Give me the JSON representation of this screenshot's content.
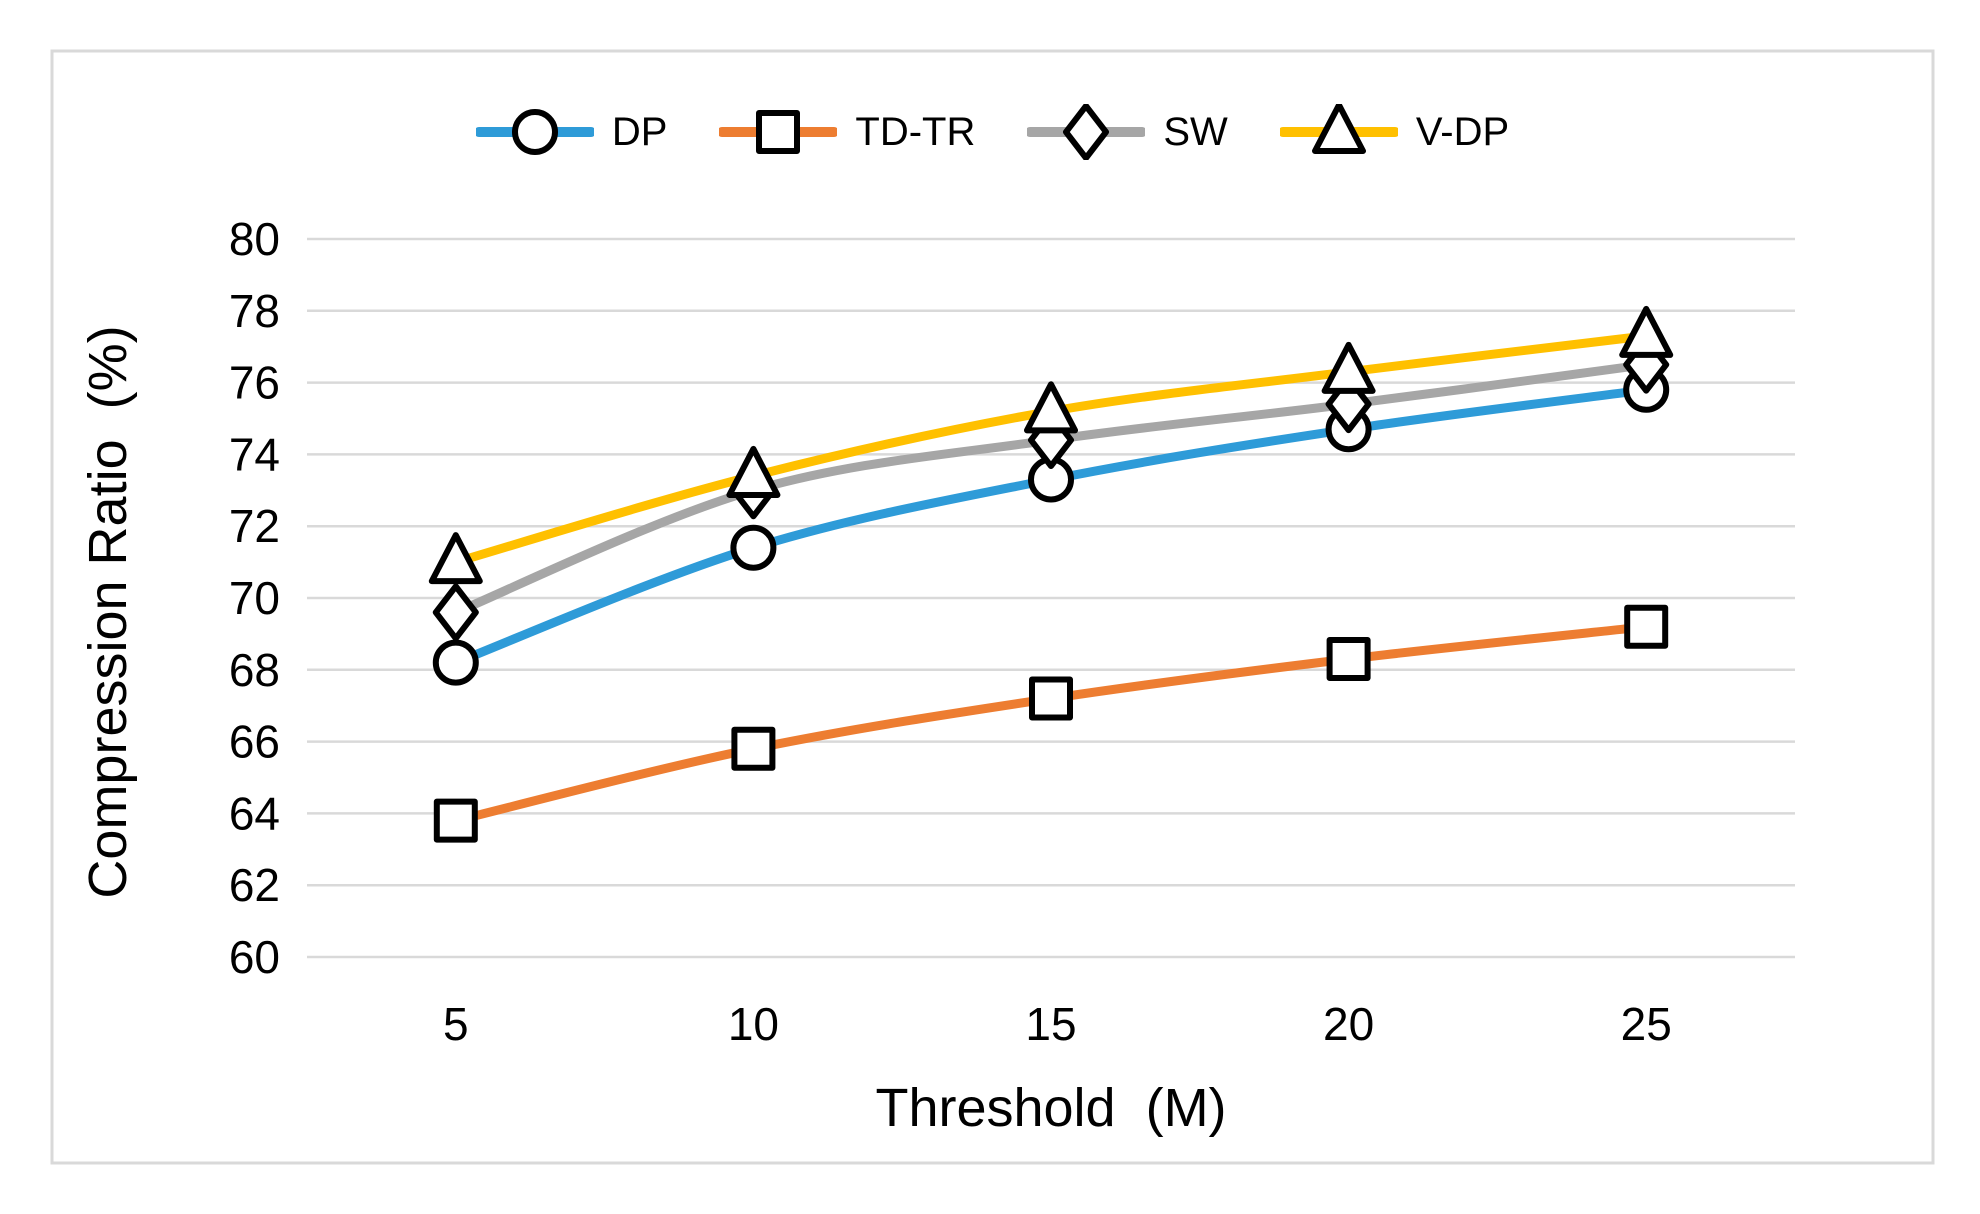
{
  "figure": {
    "background": "#ffffff",
    "border_color": "#D9D9D9"
  },
  "chart_data": {
    "type": "line",
    "title": "",
    "xlabel": "Threshold  (M)",
    "ylabel": "Compression Ratio  (%)",
    "x": [
      5,
      10,
      15,
      20,
      25
    ],
    "x_tick_labels": [
      "5",
      "10",
      "15",
      "20",
      "25"
    ],
    "ylim": [
      60,
      80
    ],
    "ytick_step": 2,
    "y_tick_labels": [
      "60",
      "62",
      "64",
      "66",
      "68",
      "70",
      "72",
      "74",
      "76",
      "78",
      "80"
    ],
    "grid": true,
    "legend_position": "top-center",
    "grid_color": "#D9D9D9",
    "text_color": "#000000",
    "marker_stroke": "#000000",
    "marker_fill": "#ffffff",
    "series": [
      {
        "name": "DP",
        "color": "#2E9BD8",
        "marker": "circle",
        "values": [
          68.2,
          71.4,
          73.3,
          74.7,
          75.8
        ]
      },
      {
        "name": "TD-TR",
        "color": "#ED7D31",
        "marker": "square",
        "values": [
          63.8,
          65.8,
          67.2,
          68.3,
          69.2
        ]
      },
      {
        "name": "SW",
        "color": "#A6A6A6",
        "marker": "diamond",
        "values": [
          69.6,
          73.0,
          74.4,
          75.4,
          76.5
        ]
      },
      {
        "name": "V-DP",
        "color": "#FFC000",
        "marker": "triangle",
        "values": [
          71.0,
          73.4,
          75.2,
          76.3,
          77.3
        ]
      }
    ]
  }
}
